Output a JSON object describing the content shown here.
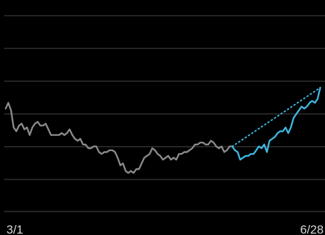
{
  "chart_data": {
    "type": "line",
    "x_start": "3/1",
    "x_end": "6/28",
    "xticks": [
      {
        "label": "3/1",
        "x": 0
      },
      {
        "label": "6/28",
        "x": 119
      }
    ],
    "grid": true,
    "ygrid_count": 7,
    "ylim": [
      0,
      100
    ],
    "series": [
      {
        "color": "#8a8a8a",
        "style": "solid",
        "x_start": 0,
        "values": [
          54,
          57,
          53,
          44,
          42,
          45,
          46,
          43,
          44,
          40,
          44,
          46,
          47,
          45,
          45,
          46,
          43,
          40,
          40,
          40,
          40,
          41,
          40,
          41,
          43,
          40,
          38,
          37,
          38,
          35,
          35,
          33,
          33,
          34,
          34,
          31,
          30,
          31,
          31,
          32,
          32,
          31,
          28,
          24,
          25,
          21,
          20,
          21,
          20,
          22,
          22,
          25,
          28,
          29,
          30,
          33,
          32,
          30,
          29,
          27,
          28,
          29,
          27,
          28,
          27,
          30,
          30,
          31,
          31,
          32,
          33,
          35,
          35,
          36,
          36,
          35,
          35,
          37,
          36,
          34,
          33,
          34,
          31,
          32,
          34,
          34
        ]
      },
      {
        "color": "#3fb6e0",
        "style": "solid",
        "x_start": 85,
        "values": [
          34,
          32,
          31,
          27,
          28,
          29,
          29,
          30,
          30,
          32,
          34,
          33,
          35,
          31,
          37,
          38,
          39,
          41,
          42,
          42,
          44,
          41,
          44,
          49,
          51,
          53,
          55,
          54,
          55,
          57,
          58,
          57,
          59,
          65
        ]
      },
      {
        "color": "#3fb6e0",
        "style": "dotted",
        "x_start": 85,
        "values": [
          34,
          65
        ],
        "x_values": [
          85,
          118
        ]
      }
    ]
  }
}
